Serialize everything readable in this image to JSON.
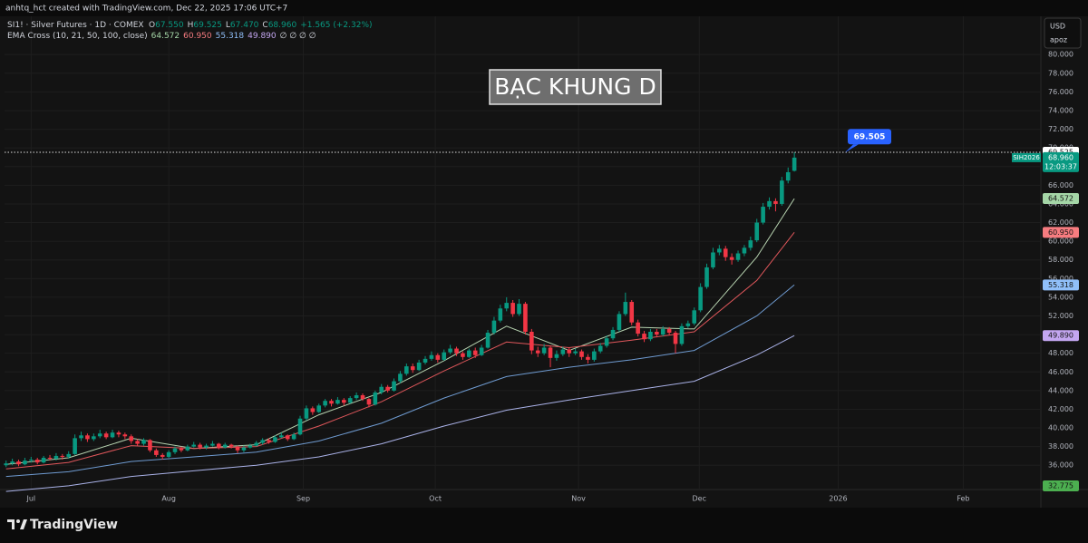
{
  "header": {
    "caption": "anhtq_hct created with TradingView.com, Dec 22, 2025 17:06 UTC+7"
  },
  "chart_data": {
    "type": "candlestick",
    "symbol": "SI1! · Silver Futures · 1D · COMEX",
    "ohlc_legend": [
      {
        "key": "O",
        "value": "67.550"
      },
      {
        "key": "H",
        "value": "69.525"
      },
      {
        "key": "L",
        "value": "67.470"
      },
      {
        "key": "C",
        "value": "68.960"
      }
    ],
    "change": "+1.565 (+2.32%)",
    "indicator": "EMA Cross (10, 21, 50, 100, close)",
    "indicator_tail": "∅ ∅ ∅ ∅",
    "up_color": "#089981",
    "down_color": "#f23645",
    "candles": [
      [
        36.0,
        36.5,
        35.8,
        36.2
      ],
      [
        36.2,
        36.7,
        36.0,
        36.4
      ],
      [
        36.4,
        36.6,
        35.9,
        36.1
      ],
      [
        36.1,
        36.8,
        36.0,
        36.5
      ],
      [
        36.5,
        36.9,
        36.3,
        36.6
      ],
      [
        36.6,
        36.8,
        36.1,
        36.3
      ],
      [
        36.3,
        37.0,
        36.2,
        36.8
      ],
      [
        36.8,
        37.1,
        36.5,
        36.7
      ],
      [
        36.7,
        37.3,
        36.5,
        37.0
      ],
      [
        37.0,
        37.2,
        36.6,
        36.9
      ],
      [
        36.9,
        37.5,
        36.7,
        37.2
      ],
      [
        37.2,
        39.3,
        37.1,
        38.9
      ],
      [
        38.9,
        39.6,
        38.6,
        39.2
      ],
      [
        39.2,
        39.4,
        38.5,
        38.8
      ],
      [
        38.8,
        39.4,
        38.6,
        39.1
      ],
      [
        39.1,
        39.8,
        38.9,
        39.4
      ],
      [
        39.4,
        39.6,
        38.8,
        39.0
      ],
      [
        39.0,
        39.8,
        38.9,
        39.5
      ],
      [
        39.5,
        39.7,
        39.0,
        39.3
      ],
      [
        39.3,
        39.5,
        38.8,
        39.1
      ],
      [
        39.1,
        39.3,
        38.3,
        38.6
      ],
      [
        38.6,
        38.8,
        38.1,
        38.3
      ],
      [
        38.3,
        38.9,
        38.1,
        38.7
      ],
      [
        38.7,
        38.8,
        37.4,
        37.6
      ],
      [
        37.6,
        37.8,
        36.9,
        37.1
      ],
      [
        37.1,
        37.3,
        36.6,
        36.9
      ],
      [
        36.9,
        37.6,
        36.8,
        37.4
      ],
      [
        37.4,
        38.0,
        37.2,
        37.8
      ],
      [
        37.8,
        38.0,
        37.4,
        37.6
      ],
      [
        37.6,
        38.2,
        37.5,
        38.0
      ],
      [
        38.0,
        38.5,
        37.9,
        38.2
      ],
      [
        38.2,
        38.4,
        37.7,
        37.9
      ],
      [
        37.9,
        38.3,
        37.7,
        38.1
      ],
      [
        38.1,
        38.6,
        38.0,
        38.3
      ],
      [
        38.3,
        38.4,
        37.7,
        37.9
      ],
      [
        37.9,
        38.4,
        37.8,
        38.2
      ],
      [
        38.2,
        38.3,
        37.8,
        38.0
      ],
      [
        38.0,
        38.1,
        37.3,
        37.6
      ],
      [
        37.6,
        38.1,
        37.4,
        37.9
      ],
      [
        37.9,
        38.3,
        37.8,
        38.1
      ],
      [
        38.1,
        38.6,
        38.0,
        38.4
      ],
      [
        38.4,
        38.9,
        38.2,
        38.7
      ],
      [
        38.7,
        38.9,
        38.3,
        38.5
      ],
      [
        38.5,
        39.2,
        38.4,
        39.0
      ],
      [
        39.0,
        39.5,
        38.9,
        39.2
      ],
      [
        39.2,
        39.3,
        38.6,
        38.8
      ],
      [
        38.8,
        39.5,
        38.7,
        39.3
      ],
      [
        39.3,
        41.3,
        39.2,
        41.0
      ],
      [
        41.0,
        42.4,
        40.8,
        42.1
      ],
      [
        42.1,
        42.3,
        41.4,
        41.7
      ],
      [
        41.7,
        42.6,
        41.6,
        42.4
      ],
      [
        42.4,
        43.1,
        42.2,
        42.9
      ],
      [
        42.9,
        43.1,
        42.3,
        42.6
      ],
      [
        42.6,
        43.3,
        42.5,
        43.0
      ],
      [
        43.0,
        43.2,
        42.4,
        42.7
      ],
      [
        42.7,
        43.4,
        42.6,
        43.2
      ],
      [
        43.2,
        43.8,
        43.0,
        43.5
      ],
      [
        43.5,
        43.7,
        42.9,
        43.1
      ],
      [
        43.1,
        43.2,
        42.2,
        42.5
      ],
      [
        42.5,
        44.0,
        42.4,
        43.8
      ],
      [
        43.8,
        44.7,
        43.6,
        44.4
      ],
      [
        44.4,
        44.6,
        43.8,
        44.0
      ],
      [
        44.0,
        45.3,
        43.9,
        45.0
      ],
      [
        45.0,
        46.1,
        44.8,
        45.8
      ],
      [
        45.8,
        46.9,
        45.6,
        46.6
      ],
      [
        46.6,
        46.9,
        45.9,
        46.2
      ],
      [
        46.2,
        47.3,
        46.1,
        47.0
      ],
      [
        47.0,
        47.7,
        46.8,
        47.4
      ],
      [
        47.4,
        48.2,
        47.2,
        47.8
      ],
      [
        47.8,
        48.0,
        47.0,
        47.3
      ],
      [
        47.3,
        48.4,
        47.2,
        48.1
      ],
      [
        48.1,
        48.9,
        47.9,
        48.5
      ],
      [
        48.5,
        48.7,
        47.7,
        48.0
      ],
      [
        48.0,
        48.2,
        47.3,
        47.6
      ],
      [
        47.6,
        48.5,
        47.5,
        48.3
      ],
      [
        48.3,
        48.6,
        47.5,
        47.8
      ],
      [
        47.8,
        48.9,
        47.7,
        48.6
      ],
      [
        48.6,
        50.5,
        48.5,
        50.2
      ],
      [
        50.2,
        51.9,
        50.0,
        51.5
      ],
      [
        51.5,
        53.2,
        51.3,
        52.8
      ],
      [
        52.8,
        54.0,
        52.5,
        53.4
      ],
      [
        53.4,
        53.7,
        51.9,
        52.2
      ],
      [
        52.2,
        53.8,
        52.0,
        53.3
      ],
      [
        53.3,
        53.5,
        50.0,
        50.3
      ],
      [
        50.3,
        50.6,
        47.9,
        48.3
      ],
      [
        48.3,
        48.7,
        47.6,
        48.0
      ],
      [
        48.0,
        49.0,
        47.8,
        48.6
      ],
      [
        48.6,
        48.8,
        46.5,
        47.5
      ],
      [
        47.5,
        48.3,
        47.2,
        47.9
      ],
      [
        47.9,
        48.7,
        47.7,
        48.4
      ],
      [
        48.4,
        48.6,
        47.6,
        48.0
      ],
      [
        48.0,
        48.5,
        47.8,
        48.2
      ],
      [
        48.2,
        48.4,
        47.3,
        47.6
      ],
      [
        47.6,
        47.9,
        46.9,
        47.3
      ],
      [
        47.3,
        48.5,
        47.1,
        48.2
      ],
      [
        48.2,
        49.1,
        48.0,
        48.8
      ],
      [
        48.8,
        49.9,
        48.6,
        49.6
      ],
      [
        49.6,
        50.8,
        49.4,
        50.5
      ],
      [
        50.5,
        52.5,
        50.3,
        52.2
      ],
      [
        52.2,
        54.5,
        52.0,
        53.5
      ],
      [
        53.5,
        53.7,
        51.0,
        51.3
      ],
      [
        51.3,
        51.6,
        49.8,
        50.1
      ],
      [
        50.1,
        50.4,
        49.2,
        49.5
      ],
      [
        49.5,
        50.6,
        49.3,
        50.3
      ],
      [
        50.3,
        50.6,
        49.7,
        50.0
      ],
      [
        50.0,
        50.9,
        49.8,
        50.6
      ],
      [
        50.6,
        50.8,
        49.9,
        50.2
      ],
      [
        50.2,
        50.4,
        48.0,
        49.0
      ],
      [
        49.0,
        51.2,
        48.8,
        50.9
      ],
      [
        50.9,
        51.5,
        50.7,
        51.2
      ],
      [
        51.2,
        52.9,
        51.0,
        52.6
      ],
      [
        52.6,
        55.5,
        52.4,
        55.1
      ],
      [
        55.1,
        57.6,
        54.9,
        57.2
      ],
      [
        57.2,
        59.3,
        57.0,
        58.8
      ],
      [
        58.8,
        59.6,
        58.5,
        59.2
      ],
      [
        59.2,
        59.5,
        57.9,
        58.3
      ],
      [
        58.3,
        58.7,
        57.5,
        58.0
      ],
      [
        58.0,
        59.0,
        57.8,
        58.7
      ],
      [
        58.7,
        59.6,
        58.4,
        59.3
      ],
      [
        59.3,
        60.5,
        59.0,
        60.1
      ],
      [
        60.1,
        62.4,
        59.9,
        62.0
      ],
      [
        62.0,
        64.1,
        61.8,
        63.7
      ],
      [
        63.7,
        64.7,
        63.4,
        64.3
      ],
      [
        64.3,
        64.6,
        63.2,
        64.0
      ],
      [
        64.0,
        66.9,
        63.8,
        66.5
      ],
      [
        66.5,
        67.9,
        66.2,
        67.4
      ],
      [
        67.55,
        69.525,
        67.47,
        68.96
      ]
    ],
    "series": [
      {
        "color": "#b7d3b0",
        "label_color": "#a5d6a7",
        "x": [
          0,
          10,
          20,
          30,
          40,
          50,
          60,
          70,
          80,
          90,
          100,
          110,
          120,
          126
        ],
        "values": [
          36.1,
          36.8,
          38.9,
          37.8,
          38.2,
          41.4,
          43.8,
          47.2,
          50.9,
          48.3,
          50.8,
          50.6,
          58.3,
          64.572
        ],
        "last_label": "64.572"
      },
      {
        "color": "#e0575b",
        "label_color": "#f77c80",
        "x": [
          0,
          10,
          20,
          30,
          40,
          50,
          60,
          70,
          80,
          90,
          100,
          110,
          120,
          126
        ],
        "values": [
          35.6,
          36.3,
          38.1,
          37.8,
          38.0,
          40.2,
          42.8,
          46.1,
          49.2,
          48.6,
          49.4,
          50.3,
          55.8,
          60.95
        ],
        "last_label": "60.950"
      },
      {
        "color": "#6f9bd1",
        "label_color": "#90bff9",
        "x": [
          0,
          10,
          20,
          30,
          40,
          50,
          60,
          70,
          80,
          90,
          100,
          110,
          120,
          126
        ],
        "values": [
          34.8,
          35.3,
          36.4,
          36.9,
          37.4,
          38.6,
          40.5,
          43.2,
          45.5,
          46.5,
          47.3,
          48.3,
          52.0,
          55.318
        ],
        "last_label": "55.318"
      },
      {
        "color": "#aab2e8",
        "label_color": "#c3a6f0",
        "x": [
          0,
          10,
          20,
          30,
          40,
          50,
          60,
          70,
          80,
          90,
          100,
          110,
          120,
          126
        ],
        "values": [
          33.2,
          33.8,
          34.8,
          35.4,
          36.0,
          36.9,
          38.3,
          40.2,
          41.9,
          43.0,
          44.0,
          45.0,
          47.8,
          49.89
        ],
        "last_label": "49.890"
      }
    ],
    "xlim": [
      -0.25,
      165.4
    ],
    "xticks": [
      {
        "value": 4,
        "label": "Jul"
      },
      {
        "value": 26,
        "label": "Aug"
      },
      {
        "value": 47.5,
        "label": "Sep"
      },
      {
        "value": 68.6,
        "label": "Oct"
      },
      {
        "value": 91.5,
        "label": "Nov"
      },
      {
        "value": 110.8,
        "label": "Dec"
      },
      {
        "value": 133,
        "label": "2026"
      },
      {
        "value": 153,
        "label": "Feb"
      }
    ],
    "ylim": [
      33.4,
      84.1
    ],
    "yticks": [
      {
        "value": 36,
        "label": "36.000"
      },
      {
        "value": 38,
        "label": "38.000"
      },
      {
        "value": 40,
        "label": "40.000"
      },
      {
        "value": 42,
        "label": "42.000"
      },
      {
        "value": 44,
        "label": "44.000"
      },
      {
        "value": 46,
        "label": "46.000"
      },
      {
        "value": 48,
        "label": "48.000"
      },
      {
        "value": 50,
        "label": "50.000"
      },
      {
        "value": 52,
        "label": "52.000"
      },
      {
        "value": 54,
        "label": "54.000"
      },
      {
        "value": 56,
        "label": "56.000"
      },
      {
        "value": 58,
        "label": "58.000"
      },
      {
        "value": 60,
        "label": "60.000"
      },
      {
        "value": 62,
        "label": "62.000"
      },
      {
        "value": 64,
        "label": "64.000"
      },
      {
        "value": 66,
        "label": "66.000"
      },
      {
        "value": 68,
        "label": "68.000"
      },
      {
        "value": 70,
        "label": "70.000"
      },
      {
        "value": 72,
        "label": "72.000"
      },
      {
        "value": 74,
        "label": "74.000"
      },
      {
        "value": 76,
        "label": "76.000"
      },
      {
        "value": 78,
        "label": "78.000"
      },
      {
        "value": 80,
        "label": "80.000"
      }
    ],
    "grid": true,
    "currency": "USD",
    "unit": "apoz",
    "high_line": {
      "value": 69.525,
      "label": "69.525"
    },
    "last_price": {
      "symbol": "SIH2026",
      "value": 68.96,
      "label": "68.960",
      "countdown": "12:03:37"
    },
    "low_tag": "32.775",
    "callout": {
      "value": 69.505,
      "label": "69.505"
    },
    "annotation": "BẠC KHUNG D"
  },
  "footer": {
    "brand": "TradingView"
  }
}
